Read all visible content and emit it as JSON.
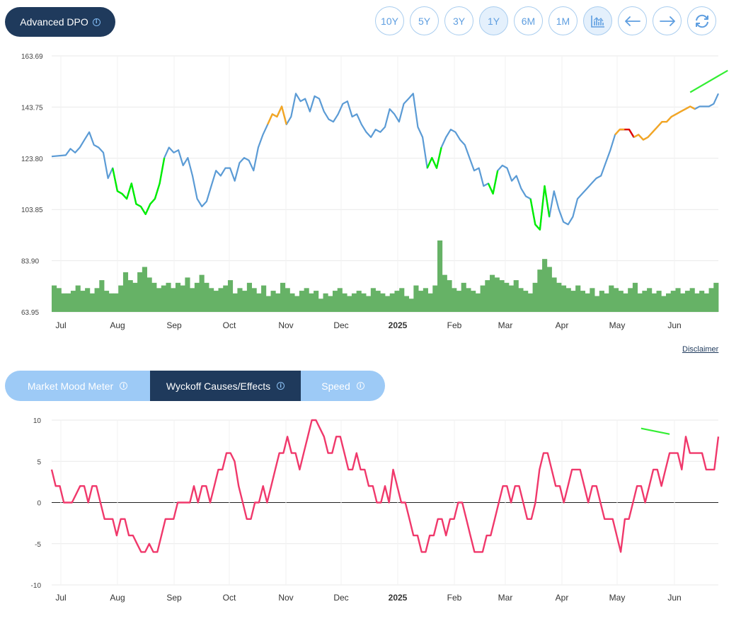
{
  "title": "Advanced DPO",
  "range_buttons": [
    "10Y",
    "5Y",
    "3Y",
    "1Y",
    "6M",
    "1M"
  ],
  "active_range": "1Y",
  "disclaimer": "Disclaimer",
  "tabs": [
    "Market Mood Meter",
    "Wyckoff Causes/Effects",
    "Speed"
  ],
  "active_tab": "Wyckoff Causes/Effects",
  "colors": {
    "price_line": "#5b9bd5",
    "bullish": "#00ee00",
    "caution": "#f5a623",
    "bearish": "#e00000",
    "volume": "#66b266",
    "indicator": "#f0386b",
    "trendline": "#33ee33",
    "pill": "#1f3a5c"
  },
  "x_ticks": [
    "Jul",
    "Aug",
    "Sep",
    "Oct",
    "Nov",
    "Dec",
    "2025",
    "Feb",
    "Mar",
    "Apr",
    "May",
    "Jun"
  ],
  "chart_data": [
    {
      "type": "line",
      "title": "Advanced DPO",
      "y_ticks": [
        "163.69",
        "143.75",
        "123.80",
        "103.85",
        "83.90",
        "63.95"
      ],
      "ylim": [
        63.95,
        163.69
      ],
      "price_series": [
        [
          0,
          124.5
        ],
        [
          3,
          125
        ],
        [
          4,
          127.5
        ],
        [
          5,
          126
        ],
        [
          6,
          128
        ],
        [
          7,
          131
        ],
        [
          8,
          134
        ],
        [
          9,
          129
        ],
        [
          10,
          128
        ],
        [
          11,
          126
        ],
        [
          12,
          116
        ],
        [
          13,
          120
        ],
        [
          14,
          111
        ],
        [
          15,
          110
        ],
        [
          16,
          108
        ],
        [
          17,
          114
        ],
        [
          18,
          106
        ],
        [
          19,
          105
        ],
        [
          20,
          102
        ],
        [
          21,
          106
        ],
        [
          22,
          108
        ],
        [
          23,
          114
        ],
        [
          24,
          124
        ],
        [
          25,
          128
        ],
        [
          26,
          126
        ],
        [
          27,
          127
        ],
        [
          28,
          121
        ],
        [
          29,
          124
        ],
        [
          30,
          117
        ],
        [
          31,
          108
        ],
        [
          32,
          105
        ],
        [
          33,
          107
        ],
        [
          34,
          113
        ],
        [
          35,
          119
        ],
        [
          36,
          117
        ],
        [
          37,
          120
        ],
        [
          38,
          120
        ],
        [
          39,
          115
        ],
        [
          40,
          122
        ],
        [
          41,
          124
        ],
        [
          42,
          123
        ],
        [
          43,
          119
        ],
        [
          44,
          128
        ],
        [
          45,
          133
        ],
        [
          46,
          137
        ],
        [
          47,
          141
        ],
        [
          48,
          140
        ],
        [
          49,
          144
        ],
        [
          50,
          137
        ],
        [
          51,
          140
        ],
        [
          52,
          149
        ],
        [
          53,
          146
        ],
        [
          54,
          147
        ],
        [
          55,
          142
        ],
        [
          56,
          148
        ],
        [
          57,
          147
        ],
        [
          58,
          142
        ],
        [
          59,
          139
        ],
        [
          60,
          138
        ],
        [
          61,
          141
        ],
        [
          62,
          145
        ],
        [
          63,
          146
        ],
        [
          64,
          140
        ],
        [
          65,
          141
        ],
        [
          66,
          137
        ],
        [
          67,
          134
        ],
        [
          68,
          132
        ],
        [
          69,
          135
        ],
        [
          70,
          134
        ],
        [
          71,
          136
        ],
        [
          72,
          143
        ],
        [
          73,
          141
        ],
        [
          74,
          138
        ],
        [
          75,
          145
        ],
        [
          76,
          147
        ],
        [
          77,
          149
        ],
        [
          78,
          136
        ],
        [
          79,
          132
        ],
        [
          80,
          120
        ],
        [
          81,
          124
        ],
        [
          82,
          120
        ],
        [
          83,
          128
        ],
        [
          84,
          132
        ],
        [
          85,
          135
        ],
        [
          86,
          134
        ],
        [
          87,
          131
        ],
        [
          88,
          129
        ],
        [
          89,
          124
        ],
        [
          90,
          119
        ],
        [
          91,
          120
        ],
        [
          92,
          113
        ],
        [
          93,
          114
        ],
        [
          94,
          110
        ],
        [
          95,
          119
        ],
        [
          96,
          121
        ],
        [
          97,
          120
        ],
        [
          98,
          115
        ],
        [
          99,
          117
        ],
        [
          100,
          112
        ],
        [
          101,
          109
        ],
        [
          102,
          108
        ],
        [
          103,
          98
        ],
        [
          104,
          96
        ],
        [
          105,
          113
        ],
        [
          106,
          101
        ],
        [
          107,
          111
        ],
        [
          108,
          104
        ],
        [
          109,
          99
        ],
        [
          110,
          98
        ],
        [
          111,
          101
        ],
        [
          112,
          108
        ],
        [
          113,
          110
        ],
        [
          114,
          112
        ],
        [
          115,
          114
        ],
        [
          116,
          116
        ],
        [
          117,
          117
        ],
        [
          118,
          122
        ],
        [
          119,
          127
        ],
        [
          120,
          133
        ],
        [
          121,
          135
        ],
        [
          122,
          135
        ],
        [
          123,
          135
        ],
        [
          124,
          132
        ],
        [
          125,
          133
        ],
        [
          126,
          131
        ],
        [
          127,
          132
        ],
        [
          128,
          134
        ],
        [
          129,
          136
        ],
        [
          130,
          138
        ],
        [
          131,
          138
        ],
        [
          132,
          140
        ],
        [
          133,
          141
        ],
        [
          134,
          142
        ],
        [
          135,
          143
        ],
        [
          136,
          144
        ],
        [
          137,
          143
        ],
        [
          138,
          144
        ],
        [
          139,
          144
        ],
        [
          140,
          144
        ],
        [
          141,
          145
        ],
        [
          142,
          149
        ]
      ],
      "volume_bars": [
        3,
        3,
        3,
        2,
        2,
        2,
        3,
        3,
        3,
        2,
        3,
        3,
        2,
        2,
        2,
        3,
        3,
        3,
        2,
        4,
        4,
        4,
        5,
        3,
        3,
        3,
        3,
        3,
        2,
        2
      ],
      "volume_series": [
        10,
        9,
        7,
        7,
        8,
        10,
        8,
        9,
        7,
        9,
        12,
        8,
        7,
        7,
        10,
        15,
        12,
        11,
        15,
        17,
        13,
        11,
        9,
        10,
        11,
        9,
        11,
        10,
        13,
        9,
        11,
        14,
        11,
        9,
        8,
        9,
        10,
        12,
        7,
        9,
        8,
        11,
        9,
        7,
        10,
        6,
        8,
        7,
        11,
        9,
        7,
        6,
        8,
        9,
        7,
        8,
        5,
        7,
        6,
        8,
        9,
        7,
        6,
        7,
        8,
        7,
        6,
        9,
        8,
        7,
        6,
        7,
        8,
        9,
        6,
        5,
        10,
        8,
        9,
        7,
        10,
        27,
        14,
        12,
        9,
        8,
        11,
        9,
        8,
        7,
        10,
        12,
        14,
        13,
        12,
        11,
        10,
        12,
        9,
        8,
        7,
        11,
        16,
        20,
        17,
        13,
        11,
        10,
        9,
        8,
        10,
        8,
        7,
        9,
        6,
        8,
        7,
        10,
        9,
        8,
        7,
        9,
        11,
        7,
        8,
        9,
        7,
        8,
        6,
        7,
        8,
        9,
        7,
        8,
        9,
        7,
        8,
        7,
        9,
        11
      ],
      "color_segments": [
        {
          "color": "bullish",
          "from": 13,
          "to": 24
        },
        {
          "color": "bullish",
          "from": 102,
          "to": 106
        },
        {
          "color": "bullish",
          "from": 80,
          "to": 83
        },
        {
          "color": "bullish",
          "from": 93,
          "to": 95
        },
        {
          "color": "caution",
          "from": 46,
          "to": 50
        },
        {
          "color": "bearish",
          "from": 121,
          "to": 124
        },
        {
          "color": "caution",
          "from": 120,
          "to": 122
        },
        {
          "color": "caution",
          "from": 124,
          "to": 137
        }
      ],
      "trendline": [
        [
          136,
          149.5
        ],
        [
          144,
          158
        ]
      ]
    },
    {
      "type": "line",
      "title": "Wyckoff Causes/Effects",
      "y_ticks": [
        "10",
        "5",
        "0",
        "-5",
        "-10"
      ],
      "ylim": [
        -10,
        10
      ],
      "series": [
        4,
        2,
        2,
        0,
        0,
        0,
        1,
        2,
        2,
        0,
        2,
        2,
        0,
        -2,
        -2,
        -2,
        -4,
        -2,
        -2,
        -4,
        -4,
        -5,
        -6,
        -6,
        -5,
        -6,
        -6,
        -4,
        -2,
        -2,
        -2,
        0,
        0,
        0,
        0,
        2,
        0,
        2,
        2,
        0,
        2,
        4,
        4,
        6,
        6,
        5,
        2,
        0,
        -2,
        -2,
        0,
        0,
        2,
        0,
        2,
        4,
        6,
        6,
        8,
        6,
        6,
        4,
        6,
        8,
        10,
        10,
        9,
        8,
        6,
        6,
        8,
        8,
        6,
        4,
        4,
        6,
        4,
        4,
        2,
        2,
        0,
        0,
        2,
        0,
        4,
        2,
        0,
        0,
        -2,
        -4,
        -4,
        -6,
        -6,
        -4,
        -4,
        -2,
        -2,
        -4,
        -2,
        -2,
        0,
        0,
        -2,
        -4,
        -6,
        -6,
        -6,
        -4,
        -4,
        -2,
        0,
        2,
        2,
        0,
        2,
        2,
        0,
        -2,
        -2,
        0,
        4,
        6,
        6,
        4,
        2,
        2,
        0,
        2,
        4,
        4,
        4,
        2,
        0,
        2,
        2,
        0,
        -2,
        -2,
        -2,
        -4,
        -6,
        -2,
        -2,
        0,
        2,
        2,
        0,
        2,
        4,
        4,
        2,
        4,
        6,
        6,
        6,
        4,
        8,
        6,
        6,
        6,
        6,
        4,
        4,
        4,
        8
      ],
      "trendline": [
        [
          145,
          9
        ],
        [
          152,
          8.3
        ]
      ]
    }
  ]
}
